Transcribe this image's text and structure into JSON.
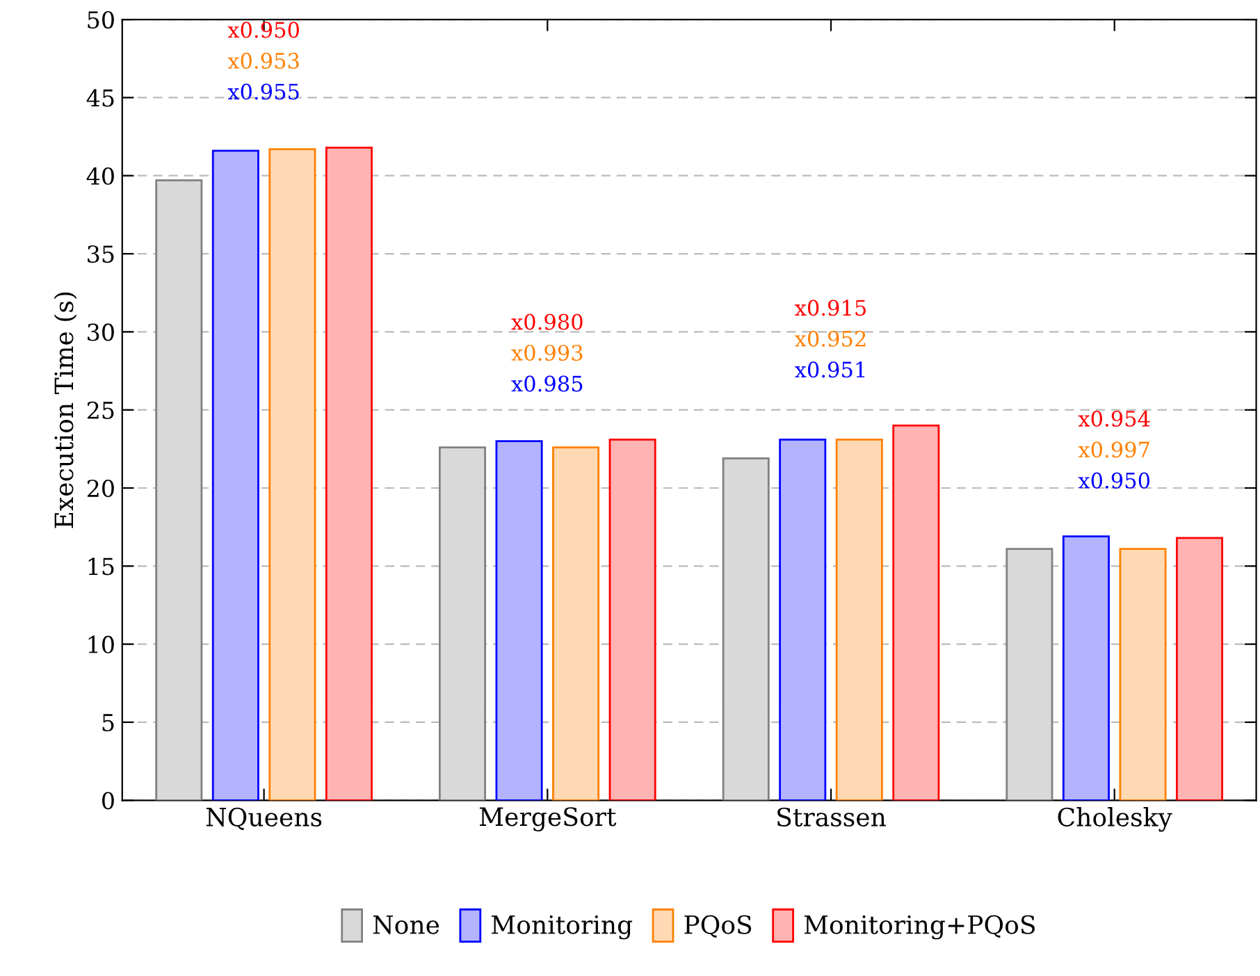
{
  "chart_data": {
    "type": "bar",
    "ylabel": "Execution Time (s)",
    "categories": [
      "NQueens",
      "MergeSort",
      "Strassen",
      "Cholesky"
    ],
    "series": [
      {
        "name": "None",
        "color": "#d9d9d9",
        "values": [
          39.7,
          22.6,
          21.9,
          16.1
        ]
      },
      {
        "name": "Monitoring",
        "color": "#b3b3ff",
        "values": [
          41.6,
          23.0,
          23.1,
          16.9
        ]
      },
      {
        "name": "PQoS",
        "color": "#ffd9b3",
        "values": [
          41.7,
          22.6,
          23.1,
          16.1
        ]
      },
      {
        "name": "Monitoring+PQoS",
        "color": "#ffb3b3",
        "values": [
          41.8,
          23.1,
          24.0,
          16.8
        ]
      }
    ],
    "annotations": [
      "x0.950",
      "x0.953",
      "x0.955",
      "x0.980",
      "x0.993",
      "x0.985",
      "x0.915",
      "x0.952",
      "x0.951",
      "x0.954",
      "x0.997",
      "x0.950"
    ],
    "ylim": [
      0,
      50
    ],
    "yticks": [
      0,
      5,
      10,
      15,
      20,
      25,
      30,
      35,
      40,
      45,
      50
    ],
    "grid": "y",
    "legend": "bottom"
  }
}
